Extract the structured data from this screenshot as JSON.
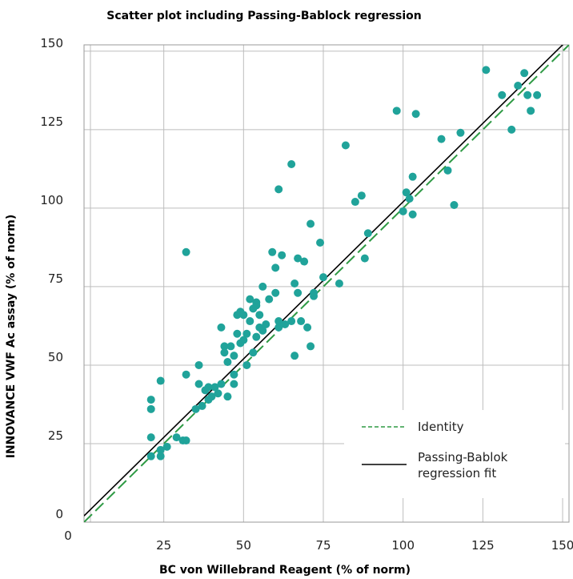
{
  "chart_data": {
    "type": "scatter",
    "title": "Scatter plot including Passing-Bablock regression",
    "xlabel": "BC von Willebrand Reagent (% of norm)",
    "ylabel": "INNOVANCE VWF Ac assay (% of norm)",
    "xlim": [
      0,
      152
    ],
    "ylim": [
      0,
      152
    ],
    "x_ticks": [
      25,
      50,
      75,
      100,
      125,
      150
    ],
    "y_ticks": [
      0,
      25,
      50,
      75,
      100,
      125,
      150
    ],
    "origin_label": "0",
    "grid": true,
    "legend_position": "bottom-right",
    "colors": {
      "points": "#20a39a",
      "identity": "#2e9a44",
      "regression": "#000000",
      "grid": "#bdbdbd"
    },
    "series": [
      {
        "type": "scatter",
        "points": [
          [
            21,
            21
          ],
          [
            21,
            27
          ],
          [
            21,
            36
          ],
          [
            21,
            39
          ],
          [
            24,
            21
          ],
          [
            24,
            23
          ],
          [
            24,
            45
          ],
          [
            26,
            24
          ],
          [
            29,
            27
          ],
          [
            31,
            26
          ],
          [
            32,
            26
          ],
          [
            32,
            47
          ],
          [
            32,
            86
          ],
          [
            35,
            36
          ],
          [
            36,
            44
          ],
          [
            36,
            50
          ],
          [
            37,
            37
          ],
          [
            38,
            42
          ],
          [
            39,
            39
          ],
          [
            39,
            43
          ],
          [
            40,
            40
          ],
          [
            41,
            43
          ],
          [
            42,
            41
          ],
          [
            43,
            44
          ],
          [
            43,
            62
          ],
          [
            44,
            54
          ],
          [
            44,
            56
          ],
          [
            45,
            51
          ],
          [
            45,
            40
          ],
          [
            46,
            56
          ],
          [
            47,
            44
          ],
          [
            47,
            47
          ],
          [
            47,
            53
          ],
          [
            48,
            60
          ],
          [
            48,
            66
          ],
          [
            49,
            57
          ],
          [
            49,
            67
          ],
          [
            50,
            66
          ],
          [
            50,
            58
          ],
          [
            51,
            50
          ],
          [
            51,
            60
          ],
          [
            52,
            64
          ],
          [
            52,
            71
          ],
          [
            53,
            54
          ],
          [
            53,
            68
          ],
          [
            54,
            70
          ],
          [
            54,
            59
          ],
          [
            54,
            69
          ],
          [
            55,
            62
          ],
          [
            55,
            66
          ],
          [
            56,
            75
          ],
          [
            56,
            61
          ],
          [
            57,
            63
          ],
          [
            58,
            71
          ],
          [
            59,
            86
          ],
          [
            60,
            81
          ],
          [
            60,
            73
          ],
          [
            61,
            62
          ],
          [
            61,
            64
          ],
          [
            61,
            106
          ],
          [
            62,
            85
          ],
          [
            63,
            63
          ],
          [
            65,
            64
          ],
          [
            65,
            114
          ],
          [
            66,
            53
          ],
          [
            66,
            76
          ],
          [
            67,
            73
          ],
          [
            67,
            84
          ],
          [
            68,
            64
          ],
          [
            69,
            83
          ],
          [
            70,
            62
          ],
          [
            71,
            95
          ],
          [
            71,
            56
          ],
          [
            72,
            73
          ],
          [
            72,
            72
          ],
          [
            74,
            89
          ],
          [
            75,
            78
          ],
          [
            80,
            76
          ],
          [
            82,
            120
          ],
          [
            85,
            102
          ],
          [
            87,
            104
          ],
          [
            88,
            84
          ],
          [
            89,
            92
          ],
          [
            98,
            131
          ],
          [
            100,
            99
          ],
          [
            101,
            105
          ],
          [
            102,
            103
          ],
          [
            103,
            110
          ],
          [
            103,
            98
          ],
          [
            104,
            130
          ],
          [
            112,
            122
          ],
          [
            114,
            112
          ],
          [
            116,
            101
          ],
          [
            118,
            124
          ],
          [
            126,
            144
          ],
          [
            131,
            136
          ],
          [
            134,
            125
          ],
          [
            136,
            139
          ],
          [
            138,
            143
          ],
          [
            139,
            136
          ],
          [
            140,
            131
          ],
          [
            142,
            136
          ]
        ]
      },
      {
        "name": "Identity",
        "type": "line",
        "style": "dashed",
        "x": [
          0,
          152
        ],
        "y": [
          0,
          152
        ]
      },
      {
        "name": "Passing-Bablok\nregression fit",
        "type": "line",
        "style": "solid",
        "x": [
          0,
          152
        ],
        "y": [
          2,
          154
        ]
      }
    ]
  }
}
